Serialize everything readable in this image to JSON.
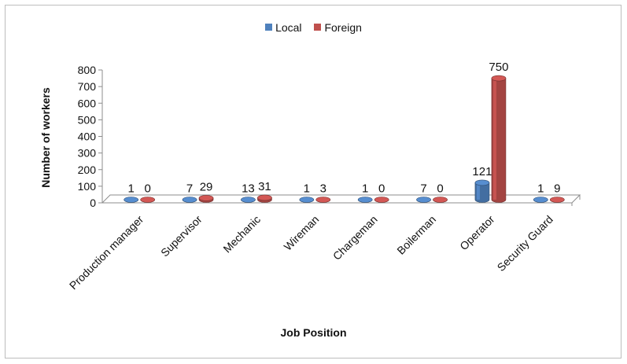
{
  "chart_data": {
    "type": "bar",
    "title": "",
    "xlabel": "Job Position",
    "ylabel": "Number of workers",
    "ylim": [
      0,
      800
    ],
    "yticks": [
      0,
      100,
      200,
      300,
      400,
      500,
      600,
      700,
      800
    ],
    "grid": false,
    "legend_position": "top-center",
    "categories": [
      "Production manager",
      "Supervisor",
      "Mechanic",
      "Wireman",
      "Chargeman",
      "Boilerman",
      "Operator",
      "Security Guard"
    ],
    "series": [
      {
        "name": "Local",
        "color": "#4f81bd",
        "values": [
          1,
          7,
          13,
          1,
          1,
          7,
          121,
          1
        ]
      },
      {
        "name": "Foreign",
        "color": "#c0504d",
        "values": [
          0,
          29,
          31,
          3,
          0,
          0,
          750,
          9
        ]
      }
    ]
  }
}
